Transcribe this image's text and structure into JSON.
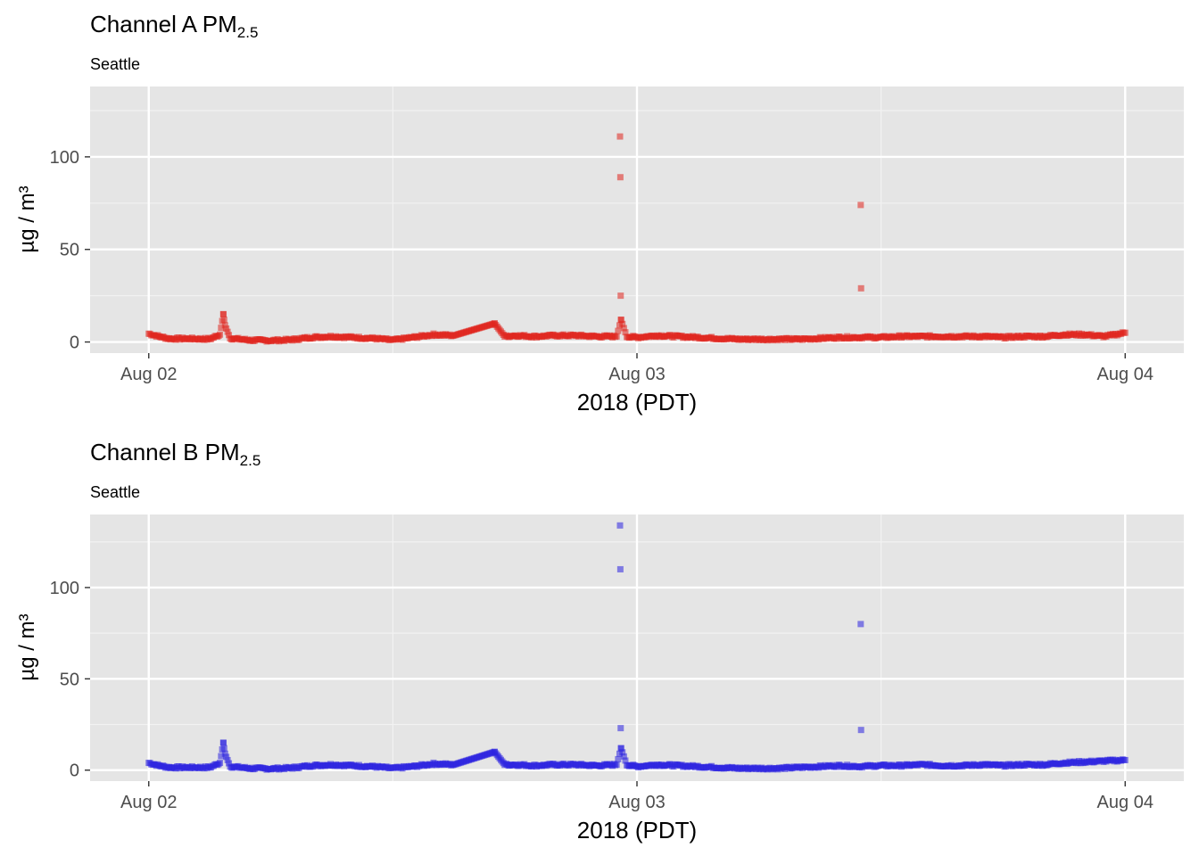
{
  "chart_data": [
    {
      "type": "scatter",
      "title": "Channel A PM",
      "title_subscript": "2.5",
      "subtitle": "Seattle",
      "xlabel": "2018 (PDT)",
      "ylabel": "µg / m³",
      "color": "#e0251e",
      "ylim": [
        -6,
        138
      ],
      "yticks": [
        0,
        50,
        100
      ],
      "ytick_labels": [
        "0",
        "50",
        "100"
      ],
      "xlim": [
        "2018-08-01 21:07",
        "2018-08-04 02:53"
      ],
      "xticks": [
        "2018-08-02 00:00",
        "2018-08-03 00:00",
        "2018-08-04 00:00"
      ],
      "xtick_labels": [
        "Aug 02",
        "Aug 03",
        "Aug 04"
      ],
      "grid": true,
      "series": [
        {
          "values": [
            [
              "2018-08-02 00:00",
              4.5
            ],
            [
              "2018-08-02 00:30",
              3.0
            ],
            [
              "2018-08-02 01:00",
              1.8
            ],
            [
              "2018-08-02 02:00",
              1.8
            ],
            [
              "2018-08-02 03:00",
              1.6
            ],
            [
              "2018-08-02 03:30",
              4.0
            ],
            [
              "2018-08-02 03:40",
              15.0
            ],
            [
              "2018-08-02 03:45",
              9.0
            ],
            [
              "2018-08-02 04:00",
              2.0
            ],
            [
              "2018-08-02 05:00",
              1.0
            ],
            [
              "2018-08-02 06:00",
              0.8
            ],
            [
              "2018-08-02 07:00",
              1.2
            ],
            [
              "2018-08-02 08:00",
              2.5
            ],
            [
              "2018-08-02 09:00",
              3.0
            ],
            [
              "2018-08-02 10:00",
              2.5
            ],
            [
              "2018-08-02 11:00",
              2.0
            ],
            [
              "2018-08-02 12:00",
              1.0
            ],
            [
              "2018-08-02 13:00",
              2.5
            ],
            [
              "2018-08-02 14:00",
              4.0
            ],
            [
              "2018-08-02 15:00",
              3.5
            ],
            [
              "2018-08-02 17:00",
              10.0
            ],
            [
              "2018-08-02 17:30",
              3.0
            ],
            [
              "2018-08-02 18:00",
              3.5
            ],
            [
              "2018-08-02 19:00",
              3.0
            ],
            [
              "2018-08-02 20:00",
              3.5
            ],
            [
              "2018-08-02 21:00",
              3.5
            ],
            [
              "2018-08-02 22:00",
              3.0
            ],
            [
              "2018-08-02 23:00",
              3.0
            ],
            [
              "2018-08-02 23:10",
              111.0
            ],
            [
              "2018-08-02 23:11",
              89.0
            ],
            [
              "2018-08-02 23:12",
              25.0
            ],
            [
              "2018-08-02 23:13",
              12.0
            ],
            [
              "2018-08-02 23:30",
              3.0
            ],
            [
              "2018-08-03 00:00",
              2.5
            ],
            [
              "2018-08-03 01:00",
              3.5
            ],
            [
              "2018-08-03 02:00",
              3.0
            ],
            [
              "2018-08-03 03:00",
              2.5
            ],
            [
              "2018-08-03 04:00",
              2.0
            ],
            [
              "2018-08-03 05:00",
              1.5
            ],
            [
              "2018-08-03 06:00",
              1.5
            ],
            [
              "2018-08-03 07:00",
              1.5
            ],
            [
              "2018-08-03 08:00",
              1.5
            ],
            [
              "2018-08-03 09:00",
              2.0
            ],
            [
              "2018-08-03 10:00",
              2.5
            ],
            [
              "2018-08-03 11:00",
              2.5
            ],
            [
              "2018-08-03 12:00",
              2.5
            ],
            [
              "2018-08-03 13:00",
              3.0
            ],
            [
              "2018-08-03 14:00",
              3.0
            ],
            [
              "2018-08-03 15:00",
              3.0
            ],
            [
              "2018-08-03 16:00",
              3.0
            ],
            [
              "2018-08-03 17:00",
              3.0
            ],
            [
              "2018-08-03 18:00",
              2.5
            ],
            [
              "2018-08-03 19:00",
              3.0
            ],
            [
              "2018-08-03 20:00",
              3.0
            ],
            [
              "2018-08-03 21:00",
              4.0
            ],
            [
              "2018-08-03 22:00",
              4.0
            ],
            [
              "2018-08-03 23:00",
              3.0
            ],
            [
              "2018-08-04 00:00",
              5.0
            ],
            [
              "2018-08-03 11:00",
              74.0
            ],
            [
              "2018-08-03 11:01",
              29.0
            ]
          ]
        }
      ]
    },
    {
      "type": "scatter",
      "title": "Channel B PM",
      "title_subscript": "2.5",
      "subtitle": "Seattle",
      "xlabel": "2018 (PDT)",
      "ylabel": "µg / m³",
      "color": "#2b22e0",
      "ylim": [
        -6,
        140
      ],
      "yticks": [
        0,
        50,
        100
      ],
      "ytick_labels": [
        "0",
        "50",
        "100"
      ],
      "xlim": [
        "2018-08-01 21:07",
        "2018-08-04 02:53"
      ],
      "xticks": [
        "2018-08-02 00:00",
        "2018-08-03 00:00",
        "2018-08-04 00:00"
      ],
      "xtick_labels": [
        "Aug 02",
        "Aug 03",
        "Aug 04"
      ],
      "grid": true,
      "series": [
        {
          "values": [
            [
              "2018-08-02 00:00",
              4.0
            ],
            [
              "2018-08-02 00:30",
              2.5
            ],
            [
              "2018-08-02 01:00",
              1.5
            ],
            [
              "2018-08-02 02:00",
              1.5
            ],
            [
              "2018-08-02 03:00",
              1.5
            ],
            [
              "2018-08-02 03:30",
              4.0
            ],
            [
              "2018-08-02 03:40",
              15.0
            ],
            [
              "2018-08-02 03:45",
              9.0
            ],
            [
              "2018-08-02 04:00",
              2.0
            ],
            [
              "2018-08-02 05:00",
              1.0
            ],
            [
              "2018-08-02 06:00",
              0.8
            ],
            [
              "2018-08-02 07:00",
              1.2
            ],
            [
              "2018-08-02 08:00",
              2.5
            ],
            [
              "2018-08-02 09:00",
              3.0
            ],
            [
              "2018-08-02 10:00",
              2.5
            ],
            [
              "2018-08-02 11:00",
              2.0
            ],
            [
              "2018-08-02 12:00",
              1.0
            ],
            [
              "2018-08-02 13:00",
              2.0
            ],
            [
              "2018-08-02 14:00",
              3.5
            ],
            [
              "2018-08-02 15:00",
              3.0
            ],
            [
              "2018-08-02 17:00",
              10.0
            ],
            [
              "2018-08-02 17:30",
              3.0
            ],
            [
              "2018-08-02 18:00",
              3.0
            ],
            [
              "2018-08-02 19:00",
              2.5
            ],
            [
              "2018-08-02 20:00",
              3.0
            ],
            [
              "2018-08-02 21:00",
              3.0
            ],
            [
              "2018-08-02 22:00",
              2.5
            ],
            [
              "2018-08-02 23:00",
              3.0
            ],
            [
              "2018-08-02 23:10",
              134.0
            ],
            [
              "2018-08-02 23:11",
              110.0
            ],
            [
              "2018-08-02 23:12",
              23.0
            ],
            [
              "2018-08-02 23:13",
              12.0
            ],
            [
              "2018-08-02 23:30",
              3.0
            ],
            [
              "2018-08-03 00:00",
              2.0
            ],
            [
              "2018-08-03 01:00",
              3.0
            ],
            [
              "2018-08-03 02:00",
              2.5
            ],
            [
              "2018-08-03 03:00",
              2.0
            ],
            [
              "2018-08-03 04:00",
              1.5
            ],
            [
              "2018-08-03 05:00",
              1.0
            ],
            [
              "2018-08-03 06:00",
              1.0
            ],
            [
              "2018-08-03 07:00",
              1.0
            ],
            [
              "2018-08-03 08:00",
              1.5
            ],
            [
              "2018-08-03 09:00",
              2.0
            ],
            [
              "2018-08-03 10:00",
              2.5
            ],
            [
              "2018-08-03 11:00",
              2.0
            ],
            [
              "2018-08-03 12:00",
              2.5
            ],
            [
              "2018-08-03 13:00",
              2.5
            ],
            [
              "2018-08-03 14:00",
              3.0
            ],
            [
              "2018-08-03 15:00",
              2.5
            ],
            [
              "2018-08-03 16:00",
              2.5
            ],
            [
              "2018-08-03 17:00",
              3.0
            ],
            [
              "2018-08-03 18:00",
              2.5
            ],
            [
              "2018-08-03 19:00",
              3.0
            ],
            [
              "2018-08-03 20:00",
              3.0
            ],
            [
              "2018-08-03 21:00",
              4.0
            ],
            [
              "2018-08-03 22:00",
              4.5
            ],
            [
              "2018-08-03 23:00",
              5.0
            ],
            [
              "2018-08-04 00:00",
              5.5
            ],
            [
              "2018-08-03 11:00",
              80.0
            ],
            [
              "2018-08-03 11:01",
              22.0
            ]
          ]
        }
      ]
    }
  ]
}
